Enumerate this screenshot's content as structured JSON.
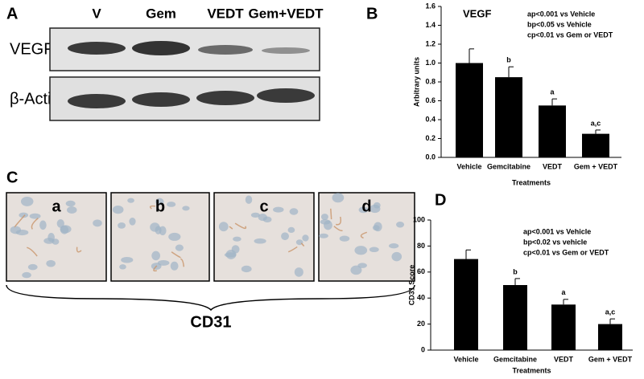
{
  "blot": {
    "label": "A",
    "lanes": [
      "V",
      "Gem",
      "VEDT",
      "Gem+VEDT"
    ],
    "rows": [
      "VEGF",
      "β-Actin"
    ]
  },
  "micrographs": {
    "label": "C",
    "images": [
      "a",
      "b",
      "c",
      "d"
    ],
    "caption": "CD31"
  },
  "chart_data": [
    {
      "type": "bar",
      "label": "B",
      "title": "VEGF",
      "annotations": [
        "ap<0.001 vs Vehicle",
        "bp<0.05 vs Vehicle",
        "cp<0.01 vs Gem or VEDT"
      ],
      "xlabel": "Treatments",
      "ylabel": "Arbitrary units",
      "categories": [
        "Vehicle",
        "Gemcitabine",
        "VEDT",
        "Gem + VEDT"
      ],
      "values": [
        1.0,
        0.85,
        0.55,
        0.25
      ],
      "errors": [
        0.15,
        0.11,
        0.07,
        0.04
      ],
      "markers": [
        null,
        "b",
        "a",
        "a,c"
      ],
      "color": "#000000",
      "ylim": [
        0,
        1.6
      ],
      "yticks": [
        {
          "value": 0,
          "label": "0.0"
        },
        {
          "value": 0.2,
          "label": "0.2"
        },
        {
          "value": 0.4,
          "label": "0.4"
        },
        {
          "value": 0.6,
          "label": "0.6"
        },
        {
          "value": 0.8,
          "label": "0.8"
        },
        {
          "value": 1,
          "label": "1.0"
        },
        {
          "value": 1.2,
          "label": "1.2"
        },
        {
          "value": 1.4,
          "label": "1.4"
        },
        {
          "value": 1.6,
          "label": "1.6"
        }
      ]
    },
    {
      "type": "bar",
      "label": "D",
      "annotations": [
        "ap<0.001 vs Vehicle",
        "bp<0.02 vs vehicle",
        "cp<0.01 vs Gem or VEDT"
      ],
      "xlabel": "Treatments",
      "ylabel": "CD31 Score",
      "categories": [
        "Vehicle",
        "Gemcitabine",
        "VEDT",
        "Gem + VEDT"
      ],
      "values": [
        70,
        50,
        35,
        20
      ],
      "errors": [
        7,
        5,
        4,
        4
      ],
      "markers": [
        null,
        "b",
        "a",
        "a,c"
      ],
      "color": "#000000",
      "ylim": [
        0,
        100
      ],
      "yticks": [
        0,
        20,
        40,
        60,
        80,
        100
      ]
    }
  ]
}
